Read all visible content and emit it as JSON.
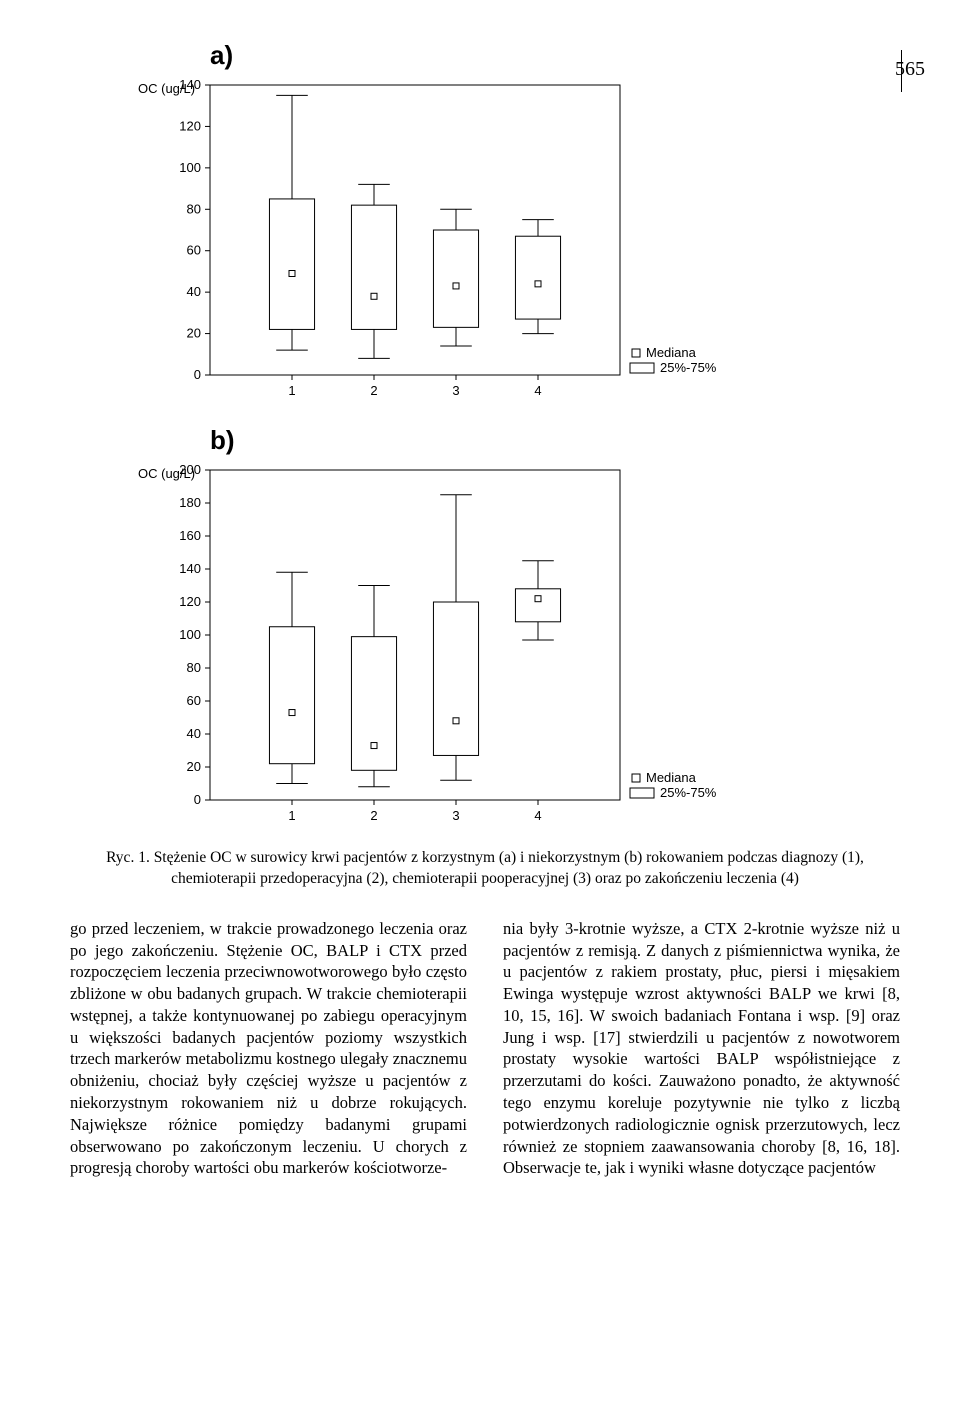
{
  "page_number": "565",
  "figure_labels": {
    "a": "a)",
    "b": "b)"
  },
  "chart_common": {
    "xlabels": [
      "1",
      "2",
      "3",
      "4"
    ],
    "legend": {
      "median": "Mediana",
      "iqr": "25%-75%"
    },
    "ylabel": "OC (ug/L)",
    "colors": {
      "axis": "#000",
      "box_fill": "#ffffff",
      "box_stroke": "#000",
      "bg": "#ffffff"
    },
    "font_family": "Arial, Helvetica, sans-serif",
    "font_size_axis": 13
  },
  "chart_a": {
    "type": "boxplot",
    "ylim": [
      0,
      140
    ],
    "ytick_step": 20,
    "yticks": [
      0,
      20,
      40,
      60,
      80,
      100,
      120,
      140
    ],
    "categories": [
      "1",
      "2",
      "3",
      "4"
    ],
    "boxes": [
      {
        "whisker_low": 12,
        "q1": 22,
        "median": 49,
        "q3": 85,
        "whisker_high": 135
      },
      {
        "whisker_low": 8,
        "q1": 22,
        "median": 38,
        "q3": 82,
        "whisker_high": 92
      },
      {
        "whisker_low": 14,
        "q1": 23,
        "median": 43,
        "q3": 70,
        "whisker_high": 80
      },
      {
        "whisker_low": 20,
        "q1": 27,
        "median": 44,
        "q3": 67,
        "whisker_high": 75
      }
    ]
  },
  "chart_b": {
    "type": "boxplot",
    "ylim": [
      0,
      200
    ],
    "ytick_step": 20,
    "yticks": [
      0,
      20,
      40,
      60,
      80,
      100,
      120,
      140,
      160,
      180,
      200
    ],
    "categories": [
      "1",
      "2",
      "3",
      "4"
    ],
    "boxes": [
      {
        "whisker_low": 10,
        "q1": 22,
        "median": 53,
        "q3": 105,
        "whisker_high": 138
      },
      {
        "whisker_low": 8,
        "q1": 18,
        "median": 33,
        "q3": 99,
        "whisker_high": 130
      },
      {
        "whisker_low": 12,
        "q1": 27,
        "median": 48,
        "q3": 120,
        "whisker_high": 185
      },
      {
        "whisker_low": 97,
        "q1": 108,
        "median": 122,
        "q3": 128,
        "whisker_high": 145
      }
    ]
  },
  "caption": "Ryc. 1. Stężenie OC w surowicy krwi pacjentów z korzystnym (a) i niekorzystnym (b) rokowaniem podczas diagnozy (1), chemioterapii przedoperacyjna (2), chemioterapii pooperacyjnej (3) oraz po zakończeniu leczenia (4)",
  "body": {
    "left": "go przed leczeniem, w trakcie prowadzonego leczenia oraz po jego zakończeniu. Stężenie OC, BALP i CTX przed rozpoczęciem leczenia przeciwnowotworowego było często zbliżone w obu badanych grupach. W trakcie chemioterapii wstępnej, a także kontynuowanej po zabiegu operacyjnym u większości badanych pacjentów poziomy wszystkich trzech markerów metabolizmu kostnego ulegały znacznemu obniżeniu, chociaż były częściej wyższe u pacjentów z niekorzystnym rokowaniem niż u dobrze rokujących. Największe różnice pomiędzy badanymi grupami obserwowano po zakończonym leczeniu. U chorych z progresją choroby wartości obu markerów kościotworze-",
    "right": "nia były 3-krotnie wyższe, a CTX 2-krotnie wyższe niż u pacjentów z remisją. Z danych z piśmiennictwa wynika, że u pacjentów z rakiem prostaty, płuc, piersi i mięsakiem Ewinga występuje wzrost aktywności BALP we krwi [8, 10, 15, 16]. W swoich badaniach Fontana i wsp. [9] oraz Jung i wsp. [17] stwierdzili u pacjentów z nowotworem prostaty wysokie wartości BALP współistniejące z przerzutami do kości. Zauważono ponadto, że aktywność tego enzymu koreluje pozytywnie nie tylko z liczbą potwierdzonych radiologicznie ognisk przerzutowych, lecz również ze stopniem zaawansowania choroby [8, 16, 18]. Obserwacje te, jak i wyniki własne dotyczące pacjentów"
  }
}
